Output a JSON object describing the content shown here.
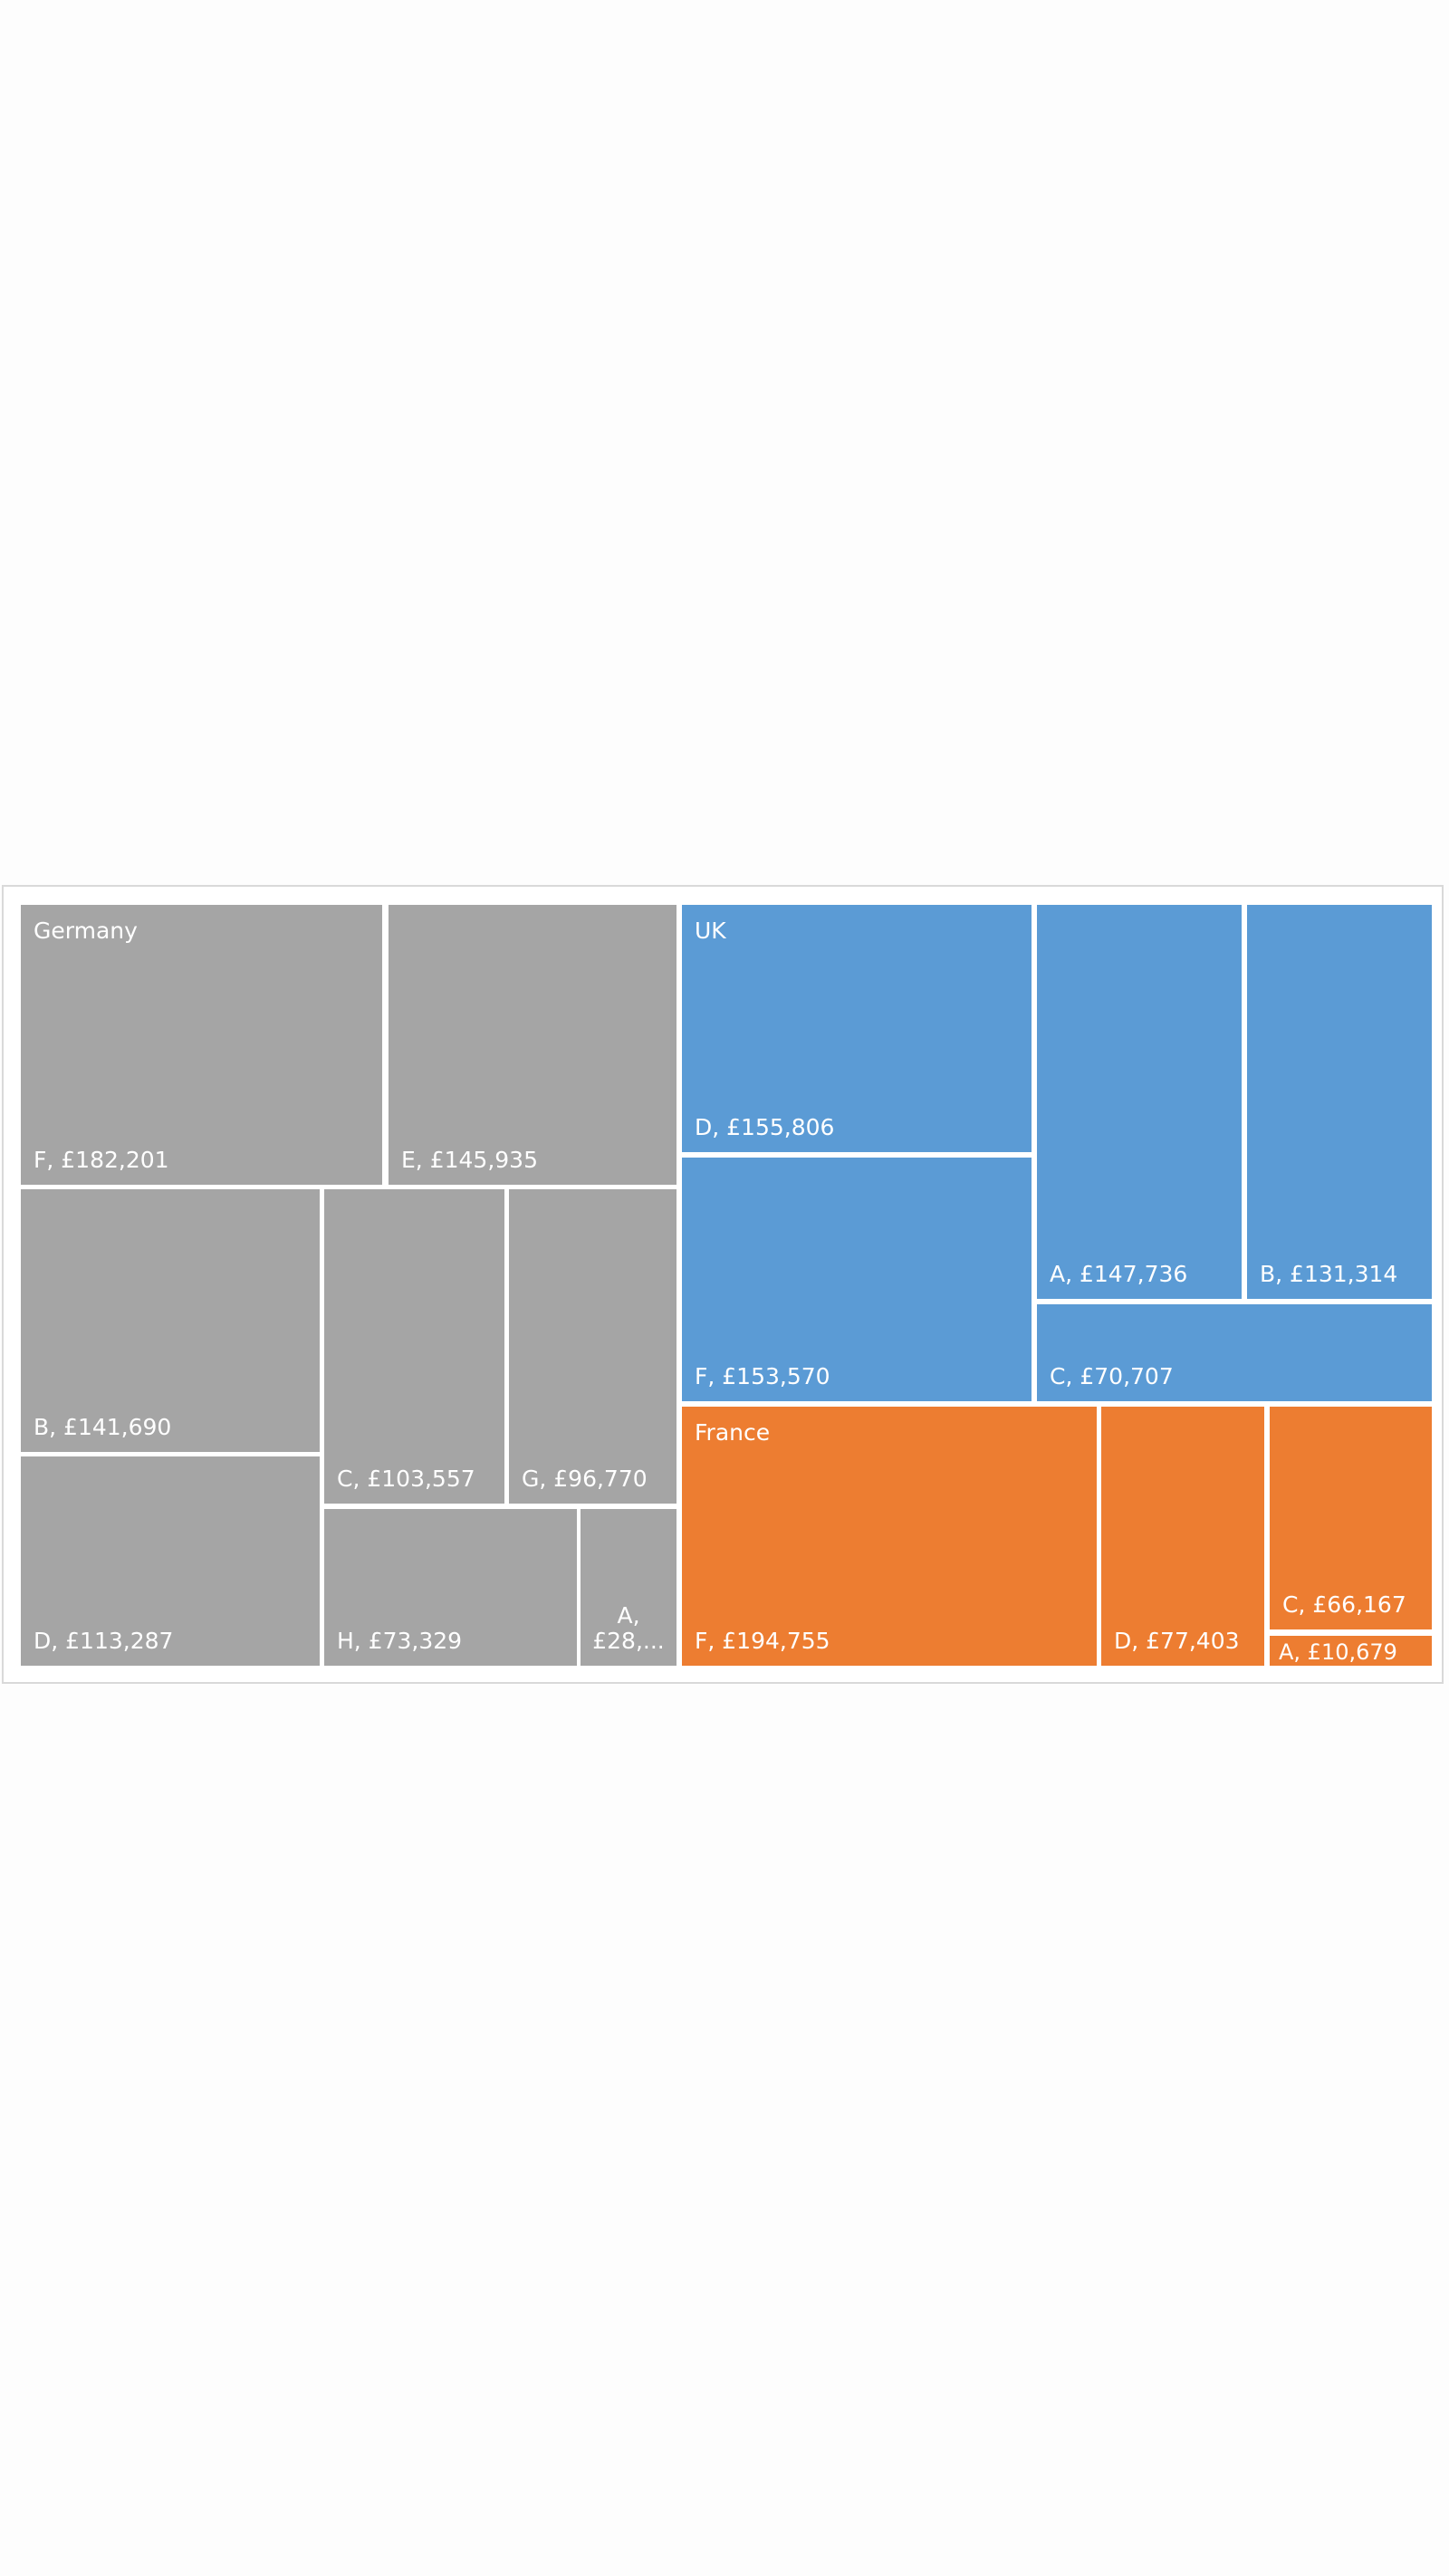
{
  "chart_data": {
    "type": "treemap",
    "colors": {
      "Germany": "#a5a5a5",
      "UK": "#5b9bd5",
      "France": "#ed7d31"
    },
    "groups": [
      {
        "name": "Germany",
        "items": [
          {
            "category": "F",
            "value": 182201,
            "label": "F, £182,201"
          },
          {
            "category": "E",
            "value": 145935,
            "label": "E, £145,935"
          },
          {
            "category": "B",
            "value": 141690,
            "label": "B, £141,690"
          },
          {
            "category": "D",
            "value": 113287,
            "label": "D, £113,287"
          },
          {
            "category": "C",
            "value": 103557,
            "label": "C, £103,557"
          },
          {
            "category": "G",
            "value": 96770,
            "label": "G, £96,770"
          },
          {
            "category": "H",
            "value": 73329,
            "label": "H, £73,329"
          },
          {
            "category": "A",
            "value": null,
            "label": "A, £28,..."
          }
        ]
      },
      {
        "name": "UK",
        "items": [
          {
            "category": "D",
            "value": 155806,
            "label": "D, £155,806"
          },
          {
            "category": "F",
            "value": 153570,
            "label": "F, £153,570"
          },
          {
            "category": "A",
            "value": 147736,
            "label": "A, £147,736"
          },
          {
            "category": "B",
            "value": 131314,
            "label": "B, £131,314"
          },
          {
            "category": "C",
            "value": 70707,
            "label": "C, £70,707"
          }
        ]
      },
      {
        "name": "France",
        "items": [
          {
            "category": "F",
            "value": 194755,
            "label": "F, £194,755"
          },
          {
            "category": "D",
            "value": 77403,
            "label": "D, £77,403"
          },
          {
            "category": "C",
            "value": 66167,
            "label": "C, £66,167"
          },
          {
            "category": "A",
            "value": 10679,
            "label": "A, £10,679"
          }
        ]
      }
    ]
  }
}
